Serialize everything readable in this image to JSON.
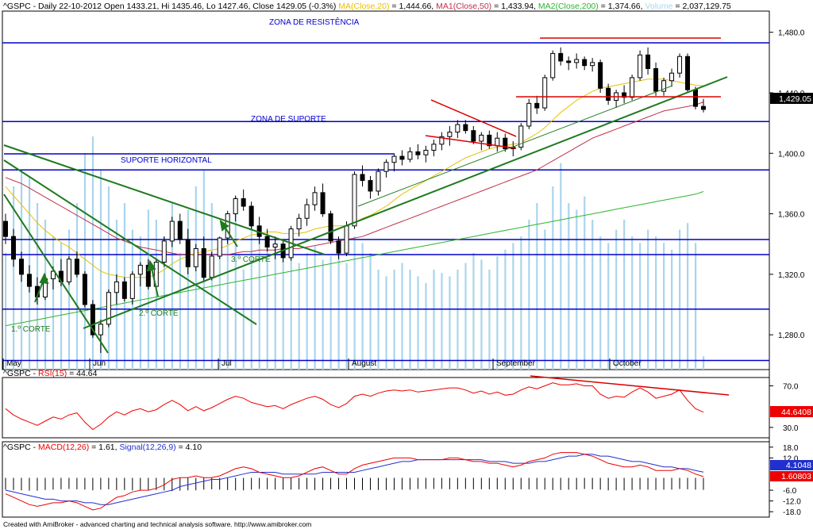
{
  "header": {
    "symbol": "^GSPC",
    "info": "^GSPC - Daily 22-10-2012 Open 1433.21, Hi 1435.46, Lo 1427.46, Close 1429.05 (-0.3%)",
    "ma_label": "MA(Close,20)",
    "ma_value": " = 1,444.66, ",
    "ma1_label": "MA1(Close,50)",
    "ma1_value": " = 1,433.94, ",
    "ma2_label": "MA2(Close,200)",
    "ma2_value": " = 1,374.66, ",
    "vol_label": "Volume",
    "vol_value": " = 2,037,129.75"
  },
  "colors": {
    "bull": "#ffffff",
    "bear": "#000000",
    "ma20": "#e8c000",
    "ma50": "#c0304a",
    "ma200": "#2db52d",
    "volume": "#a9d5ec",
    "hline": "#0000cc",
    "trend": "#1e7a1e",
    "red": "#dd0000",
    "rsi": "#ee0000",
    "macd": "#ee0000",
    "signal": "#2030d0",
    "text": "#000000"
  },
  "annotations": {
    "resistance": "ZONA DE RESISTÊNCIA",
    "support": "ZONA DE SUPORTE",
    "horizontal": "SUPORTE HORIZONTAL",
    "cut1": "1.º CORTE",
    "cut2": "2.º CORTE",
    "cut3": "3.º CORTE"
  },
  "months": [
    "May",
    "Jun",
    "Jul",
    "August",
    "September",
    "October"
  ],
  "footer": "Created with AmiBroker - advanced charting and technical analysis software. http://www.amibroker.com",
  "chart_data": [
    {
      "type": "candlestick",
      "title": "^GSPC - Daily",
      "y_ticks": [
        "1,480.0",
        "1,440.0",
        "1,400.0",
        "1,360.0",
        "1,320.0",
        "1,280.0"
      ],
      "ylim": [
        1257,
        1494
      ],
      "last_label": "1,429.05",
      "horizontal_levels": [
        1473,
        1421,
        1389,
        1343,
        1333,
        1297,
        1263
      ],
      "ohlc": [
        [
          1355,
          1360,
          1340,
          1345
        ],
        [
          1345,
          1350,
          1325,
          1330
        ],
        [
          1330,
          1335,
          1315,
          1320
        ],
        [
          1320,
          1326,
          1308,
          1312
        ],
        [
          1312,
          1318,
          1300,
          1305
        ],
        [
          1305,
          1320,
          1303,
          1317
        ],
        [
          1317,
          1325,
          1310,
          1322
        ],
        [
          1322,
          1330,
          1312,
          1315
        ],
        [
          1315,
          1332,
          1313,
          1330
        ],
        [
          1330,
          1335,
          1318,
          1320
        ],
        [
          1320,
          1322,
          1298,
          1300
        ],
        [
          1300,
          1303,
          1278,
          1280
        ],
        [
          1280,
          1290,
          1268,
          1287
        ],
        [
          1287,
          1310,
          1285,
          1308
        ],
        [
          1308,
          1320,
          1300,
          1315
        ],
        [
          1315,
          1318,
          1302,
          1304
        ],
        [
          1304,
          1322,
          1300,
          1320
        ],
        [
          1320,
          1328,
          1312,
          1326
        ],
        [
          1326,
          1330,
          1310,
          1312
        ],
        [
          1312,
          1330,
          1310,
          1328
        ],
        [
          1328,
          1345,
          1325,
          1342
        ],
        [
          1342,
          1358,
          1338,
          1355
        ],
        [
          1355,
          1360,
          1340,
          1343
        ],
        [
          1343,
          1350,
          1320,
          1325
        ],
        [
          1325,
          1340,
          1322,
          1337
        ],
        [
          1337,
          1345,
          1315,
          1318
        ],
        [
          1318,
          1335,
          1316,
          1332
        ],
        [
          1332,
          1345,
          1330,
          1344
        ],
        [
          1344,
          1362,
          1340,
          1360
        ],
        [
          1360,
          1372,
          1355,
          1370
        ],
        [
          1370,
          1376,
          1362,
          1365
        ],
        [
          1365,
          1368,
          1350,
          1352
        ],
        [
          1352,
          1358,
          1340,
          1345
        ],
        [
          1345,
          1350,
          1335,
          1338
        ],
        [
          1338,
          1345,
          1330,
          1340
        ],
        [
          1340,
          1342,
          1328,
          1331
        ],
        [
          1331,
          1352,
          1329,
          1350
        ],
        [
          1350,
          1360,
          1345,
          1357
        ],
        [
          1357,
          1370,
          1352,
          1366
        ],
        [
          1366,
          1378,
          1362,
          1374
        ],
        [
          1374,
          1380,
          1358,
          1360
        ],
        [
          1360,
          1362,
          1340,
          1342
        ],
        [
          1342,
          1345,
          1330,
          1334
        ],
        [
          1334,
          1355,
          1332,
          1352
        ],
        [
          1352,
          1388,
          1350,
          1386
        ],
        [
          1386,
          1392,
          1378,
          1382
        ],
        [
          1382,
          1385,
          1370,
          1375
        ],
        [
          1375,
          1390,
          1372,
          1388
        ],
        [
          1388,
          1396,
          1384,
          1394
        ],
        [
          1394,
          1400,
          1388,
          1398
        ],
        [
          1398,
          1402,
          1392,
          1396
        ],
        [
          1396,
          1404,
          1394,
          1401
        ],
        [
          1401,
          1406,
          1396,
          1399
        ],
        [
          1399,
          1405,
          1394,
          1402
        ],
        [
          1402,
          1409,
          1398,
          1406
        ],
        [
          1406,
          1414,
          1402,
          1411
        ],
        [
          1411,
          1418,
          1405,
          1414
        ],
        [
          1414,
          1422,
          1410,
          1419
        ],
        [
          1419,
          1422,
          1413,
          1415
        ],
        [
          1415,
          1418,
          1406,
          1408
        ],
        [
          1408,
          1414,
          1402,
          1412
        ],
        [
          1412,
          1415,
          1403,
          1405
        ],
        [
          1405,
          1414,
          1401,
          1410
        ],
        [
          1410,
          1413,
          1401,
          1403
        ],
        [
          1403,
          1408,
          1398,
          1404
        ],
        [
          1404,
          1420,
          1402,
          1418
        ],
        [
          1418,
          1436,
          1416,
          1433
        ],
        [
          1433,
          1438,
          1426,
          1430
        ],
        [
          1430,
          1452,
          1428,
          1450
        ],
        [
          1450,
          1468,
          1448,
          1466
        ],
        [
          1466,
          1470,
          1458,
          1461
        ],
        [
          1461,
          1464,
          1455,
          1460
        ],
        [
          1460,
          1466,
          1456,
          1462
        ],
        [
          1462,
          1464,
          1455,
          1458
        ],
        [
          1458,
          1463,
          1454,
          1460
        ],
        [
          1460,
          1462,
          1440,
          1443
        ],
        [
          1443,
          1446,
          1432,
          1435
        ],
        [
          1435,
          1442,
          1430,
          1440
        ],
        [
          1440,
          1445,
          1433,
          1437
        ],
        [
          1437,
          1452,
          1435,
          1450
        ],
        [
          1450,
          1468,
          1448,
          1465
        ],
        [
          1465,
          1470,
          1452,
          1456
        ],
        [
          1456,
          1460,
          1438,
          1441
        ],
        [
          1441,
          1450,
          1438,
          1448
        ],
        [
          1448,
          1456,
          1444,
          1453
        ],
        [
          1453,
          1466,
          1450,
          1464
        ],
        [
          1464,
          1466,
          1440,
          1442
        ],
        [
          1442,
          1444,
          1429,
          1431
        ],
        [
          1431,
          1436,
          1427,
          1429
        ]
      ],
      "ma20": [
        1378,
        1372,
        1366,
        1360,
        1354,
        1349,
        1345,
        1341,
        1338,
        1334,
        1330,
        1326,
        1322,
        1320,
        1319,
        1318,
        1318,
        1318,
        1318,
        1320,
        1323,
        1327,
        1330,
        1332,
        1334,
        1335,
        1336,
        1337,
        1339,
        1342,
        1344,
        1346,
        1347,
        1348,
        1348,
        1347,
        1347,
        1347,
        1348,
        1350,
        1351,
        1352,
        1352,
        1352,
        1354,
        1357,
        1359,
        1362,
        1365,
        1369,
        1373,
        1376,
        1379,
        1382,
        1385,
        1388,
        1391,
        1394,
        1397,
        1399,
        1401,
        1403,
        1404,
        1405,
        1406,
        1407,
        1410,
        1413,
        1417,
        1422,
        1427,
        1431,
        1435,
        1438,
        1441,
        1443,
        1444,
        1445,
        1446,
        1447,
        1448,
        1449,
        1449,
        1449,
        1448,
        1447,
        1446,
        1445,
        1444.7
      ],
      "ma50": [
        1384,
        1382,
        1380,
        1377,
        1374,
        1371,
        1368,
        1365,
        1362,
        1359,
        1356,
        1353,
        1350,
        1347,
        1344,
        1342,
        1340,
        1338,
        1337,
        1336,
        1335,
        1334,
        1333,
        1333,
        1333,
        1333,
        1333,
        1333,
        1333,
        1334,
        1335,
        1335,
        1336,
        1336,
        1336,
        1337,
        1337,
        1337,
        1338,
        1339,
        1340,
        1341,
        1342,
        1343,
        1344,
        1345,
        1347,
        1349,
        1351,
        1353,
        1355,
        1357,
        1359,
        1361,
        1363,
        1365,
        1367,
        1369,
        1371,
        1373,
        1375,
        1377,
        1379,
        1381,
        1383,
        1385,
        1387,
        1389,
        1392,
        1395,
        1398,
        1401,
        1404,
        1407,
        1410,
        1412,
        1414,
        1416,
        1418,
        1420,
        1422,
        1424,
        1426,
        1428,
        1429,
        1430,
        1431,
        1432,
        1433.9
      ],
      "ma200": [
        1286,
        1287,
        1288,
        1289,
        1290,
        1291,
        1292,
        1293,
        1294,
        1295,
        1296,
        1297,
        1298,
        1299,
        1300,
        1301,
        1302,
        1303,
        1304,
        1305,
        1306,
        1307,
        1308,
        1309,
        1310,
        1311,
        1312,
        1313,
        1314,
        1315,
        1316,
        1317,
        1318,
        1319,
        1320,
        1321,
        1322,
        1323,
        1324,
        1325,
        1326,
        1327,
        1328,
        1329,
        1330,
        1331,
        1332,
        1333,
        1334,
        1335,
        1336,
        1337,
        1338,
        1339,
        1340,
        1341,
        1342,
        1343,
        1344,
        1345,
        1346,
        1347,
        1348,
        1349,
        1350,
        1351,
        1352,
        1353,
        1354,
        1355,
        1356,
        1357,
        1358,
        1359,
        1360,
        1361,
        1362,
        1363,
        1364,
        1365,
        1366,
        1367,
        1368,
        1369,
        1370,
        1371,
        1372,
        1373,
        1374.7
      ],
      "volume": [
        0.35,
        0.55,
        0.6,
        0.58,
        0.5,
        0.45,
        0.4,
        0.38,
        0.42,
        0.5,
        0.65,
        0.7,
        0.6,
        0.55,
        0.45,
        0.5,
        0.42,
        0.4,
        0.48,
        0.45,
        0.4,
        0.5,
        0.35,
        0.48,
        0.55,
        0.6,
        0.5,
        0.38,
        0.45,
        0.52,
        0.3,
        0.45,
        0.42,
        0.4,
        0.38,
        0.35,
        0.36,
        0.32,
        0.35,
        0.37,
        0.33,
        0.34,
        0.36,
        0.32,
        0.4,
        0.38,
        0.35,
        0.3,
        0.28,
        0.3,
        0.32,
        0.3,
        0.28,
        0.26,
        0.3,
        0.29,
        0.28,
        0.3,
        0.32,
        0.35,
        0.33,
        0.3,
        0.34,
        0.36,
        0.38,
        0.4,
        0.45,
        0.5,
        0.42,
        0.55,
        0.62,
        0.5,
        0.48,
        0.52,
        0.45,
        0.4,
        0.38,
        0.42,
        0.45,
        0.4,
        0.38,
        0.42,
        0.4,
        0.38,
        0.36,
        0.42,
        0.44,
        0.38,
        0.04
      ]
    },
    {
      "type": "line",
      "title": "^GSPC - RSI(15)",
      "series_name": "RSI(15)",
      "value_label": " = 44.64",
      "y_ticks": [
        "70.0",
        "30.0"
      ],
      "ylim": [
        20,
        78
      ],
      "last_label": "44.6408",
      "values": [
        48,
        42,
        38,
        35,
        32,
        36,
        40,
        38,
        42,
        44,
        35,
        28,
        33,
        40,
        45,
        42,
        46,
        48,
        45,
        47,
        52,
        56,
        52,
        46,
        50,
        46,
        49,
        53,
        57,
        60,
        58,
        54,
        52,
        50,
        51,
        48,
        52,
        55,
        58,
        60,
        57,
        52,
        49,
        53,
        60,
        62,
        60,
        63,
        65,
        66,
        65,
        66,
        64,
        65,
        66,
        67,
        68,
        68,
        66,
        63,
        65,
        62,
        64,
        61,
        62,
        66,
        69,
        67,
        70,
        73,
        71,
        71,
        72,
        70,
        70,
        62,
        58,
        60,
        59,
        64,
        68,
        64,
        58,
        60,
        62,
        66,
        56,
        48,
        44.64
      ]
    },
    {
      "type": "line",
      "title": "^GSPC - MACD(12,26)",
      "series": [
        {
          "name": "MACD(12,26)",
          "value_label": " = 1.61",
          "values": [
            -8,
            -10,
            -12,
            -14,
            -15,
            -14,
            -13,
            -13,
            -12,
            -13,
            -15,
            -17,
            -16,
            -13,
            -10,
            -9,
            -7,
            -6,
            -6,
            -5,
            -3,
            0,
            1,
            1,
            2,
            1,
            1,
            2,
            4,
            6,
            7,
            6,
            4,
            3,
            2,
            1,
            1,
            2,
            4,
            6,
            7,
            5,
            3,
            3,
            6,
            8,
            9,
            10,
            11,
            12,
            12,
            12,
            11,
            11,
            11,
            11,
            12,
            12,
            11,
            10,
            10,
            9,
            9,
            8,
            7,
            8,
            10,
            11,
            12,
            14,
            15,
            15,
            15,
            14,
            13,
            11,
            9,
            8,
            7,
            7,
            8,
            7,
            5,
            5,
            5,
            6,
            5,
            3,
            1.61
          ]
        },
        {
          "name": "Signal(12,26,9)",
          "value_label": " = 4.10",
          "values": [
            -6,
            -7,
            -8,
            -9,
            -10,
            -11,
            -11,
            -12,
            -12,
            -12,
            -13,
            -13,
            -14,
            -14,
            -13,
            -12,
            -11,
            -10,
            -9,
            -8,
            -7,
            -6,
            -4,
            -3,
            -2,
            -1,
            0,
            0,
            1,
            2,
            3,
            4,
            4,
            4,
            4,
            3,
            3,
            3,
            3,
            3,
            4,
            4,
            4,
            4,
            4,
            5,
            6,
            7,
            8,
            9,
            10,
            10,
            11,
            11,
            11,
            11,
            11,
            11,
            11,
            11,
            11,
            10,
            10,
            10,
            9,
            9,
            9,
            10,
            10,
            11,
            12,
            13,
            13,
            14,
            14,
            13,
            13,
            12,
            11,
            10,
            10,
            9,
            8,
            7,
            7,
            6,
            6,
            5,
            4.1
          ]
        }
      ],
      "y_ticks": [
        "18.0",
        "12.0",
        "-6.0",
        "-12.0",
        "-18.0"
      ],
      "ylim": [
        -21,
        21
      ],
      "last_labels": [
        "4.1048",
        "1.60803"
      ]
    }
  ]
}
